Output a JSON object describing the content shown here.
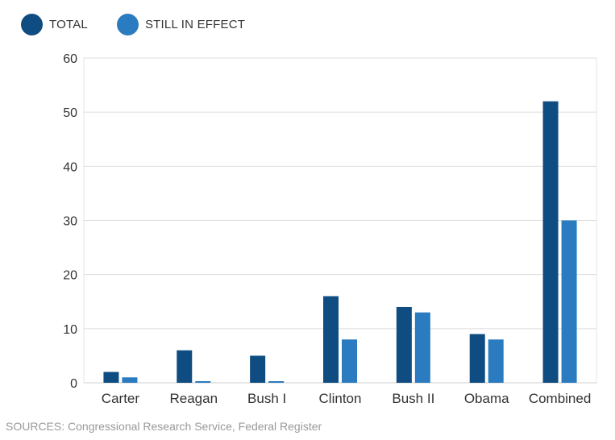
{
  "legend": {
    "items": [
      {
        "label": "TOTAL",
        "color": "#0f4c81"
      },
      {
        "label": "STILL IN EFFECT",
        "color": "#2a7bbf"
      }
    ]
  },
  "source": "SOURCES: Congressional Research Service, Federal Register",
  "chart_data": {
    "type": "bar",
    "title": "",
    "xlabel": "",
    "ylabel": "",
    "categories": [
      "Carter",
      "Reagan",
      "Bush I",
      "Clinton",
      "Bush II",
      "Obama",
      "Combined"
    ],
    "series": [
      {
        "name": "TOTAL",
        "color": "#0f4c81",
        "values": [
          2,
          6,
          5,
          16,
          14,
          9,
          52
        ]
      },
      {
        "name": "STILL IN EFFECT",
        "color": "#2a7bbf",
        "values": [
          1,
          0,
          0,
          8,
          13,
          8,
          30
        ]
      }
    ],
    "ylim": [
      0,
      60
    ],
    "yticks": [
      0,
      10,
      20,
      30,
      40,
      50,
      60
    ],
    "grid": true,
    "legend_position": "top-left"
  }
}
